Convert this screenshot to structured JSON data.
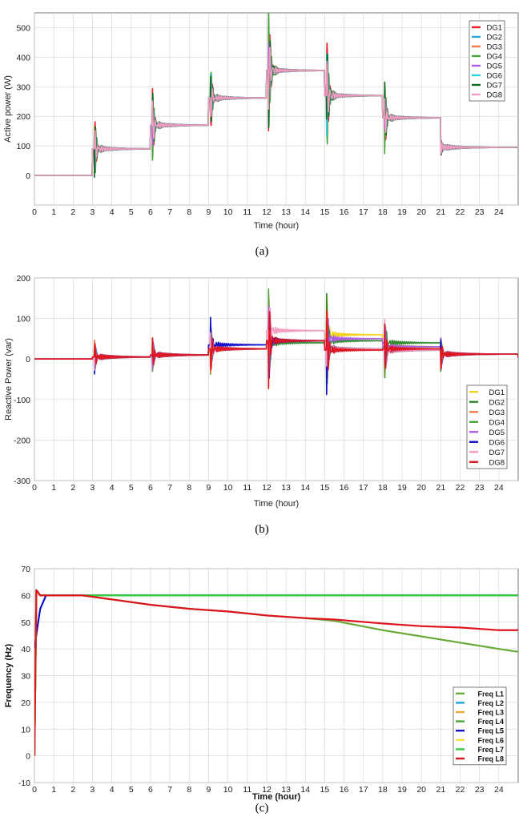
{
  "chart_data": [
    {
      "id": "a",
      "type": "line",
      "caption": "(a)",
      "xlabel": "Time (hour)",
      "ylabel": "Active power (W)",
      "xlim": [
        0,
        25
      ],
      "ylim": [
        -100,
        550
      ],
      "xticks": [
        0,
        1,
        2,
        3,
        4,
        5,
        6,
        7,
        8,
        9,
        10,
        11,
        12,
        13,
        14,
        15,
        16,
        17,
        18,
        19,
        20,
        21,
        22,
        23,
        24
      ],
      "yticks": [
        -100,
        0,
        100,
        200,
        300,
        400,
        500
      ],
      "ytick_labels": [
        "",
        "0",
        "100",
        "200",
        "300",
        "400",
        "500"
      ],
      "grid": true,
      "legend_position": "top-right",
      "series_colors": {
        "DG1": "#e8202a",
        "DG2": "#1fa3d8",
        "DG3": "#f07a4a",
        "DG4": "#4aa33a",
        "DG5": "#b05ce0",
        "DG6": "#28d4e0",
        "DG7": "#0f6b1e",
        "DG8": "#f29ac0"
      },
      "series": [
        {
          "name": "DG1",
          "t": [
            0,
            3,
            6,
            9,
            12,
            15,
            18,
            21,
            25
          ],
          "v": [
            0,
            90,
            170,
            262,
            355,
            270,
            195,
            95,
            95
          ]
        },
        {
          "name": "DG2",
          "t": [
            0,
            3,
            6,
            9,
            12,
            15,
            18,
            21,
            25
          ],
          "v": [
            0,
            90,
            170,
            262,
            355,
            270,
            195,
            95,
            95
          ]
        },
        {
          "name": "DG3",
          "t": [
            0,
            3,
            6,
            9,
            12,
            15,
            18,
            21,
            25
          ],
          "v": [
            0,
            90,
            170,
            262,
            355,
            270,
            195,
            95,
            95
          ]
        },
        {
          "name": "DG4",
          "t": [
            0,
            3,
            6,
            9,
            12,
            15,
            18,
            21,
            25
          ],
          "v": [
            0,
            90,
            170,
            262,
            355,
            270,
            195,
            95,
            95
          ]
        },
        {
          "name": "DG5",
          "t": [
            0,
            3,
            6,
            9,
            12,
            15,
            18,
            21,
            25
          ],
          "v": [
            0,
            90,
            170,
            262,
            355,
            270,
            195,
            95,
            95
          ]
        },
        {
          "name": "DG6",
          "t": [
            0,
            3,
            6,
            9,
            12,
            15,
            18,
            21,
            25
          ],
          "v": [
            0,
            90,
            170,
            262,
            355,
            270,
            195,
            95,
            95
          ]
        },
        {
          "name": "DG7",
          "t": [
            0,
            3,
            6,
            9,
            12,
            15,
            18,
            21,
            25
          ],
          "v": [
            0,
            90,
            170,
            262,
            355,
            270,
            195,
            95,
            95
          ]
        },
        {
          "name": "DG8",
          "t": [
            0,
            3,
            6,
            9,
            12,
            15,
            18,
            21,
            25
          ],
          "v": [
            0,
            90,
            170,
            262,
            355,
            270,
            195,
            95,
            95
          ]
        }
      ]
    },
    {
      "id": "b",
      "type": "line",
      "caption": "(b)",
      "xlabel": "Time (hour)",
      "ylabel": "Reactive Power (var)",
      "xlim": [
        0,
        25
      ],
      "ylim": [
        -300,
        200
      ],
      "xticks": [
        0,
        1,
        2,
        3,
        4,
        5,
        6,
        7,
        8,
        9,
        10,
        11,
        12,
        13,
        14,
        15,
        16,
        17,
        18,
        19,
        20,
        21,
        22,
        23,
        24
      ],
      "yticks": [
        -300,
        -200,
        -100,
        0,
        100,
        200
      ],
      "grid": true,
      "legend_position": "bottom-right",
      "series_colors": {
        "DG1": "#f2d21a",
        "DG2": "#2e8a2e",
        "DG3": "#f07a4a",
        "DG4": "#4aa33a",
        "DG5": "#b05ce0",
        "DG6": "#1010c8",
        "DG7": "#f29ac0",
        "DG8": "#e0141e"
      },
      "series": [
        {
          "name": "DG1",
          "t": [
            0,
            3,
            6,
            9,
            12,
            15,
            18,
            21,
            25
          ],
          "v": [
            0,
            5,
            10,
            25,
            45,
            60,
            30,
            12,
            3
          ]
        },
        {
          "name": "DG2",
          "t": [
            0,
            3,
            6,
            9,
            12,
            15,
            18,
            21,
            25
          ],
          "v": [
            0,
            5,
            10,
            25,
            40,
            45,
            40,
            12,
            3
          ]
        },
        {
          "name": "DG3",
          "t": [
            0,
            3,
            6,
            9,
            12,
            15,
            18,
            21,
            25
          ],
          "v": [
            0,
            5,
            10,
            25,
            45,
            25,
            22,
            12,
            3
          ]
        },
        {
          "name": "DG4",
          "t": [
            0,
            3,
            6,
            9,
            12,
            15,
            18,
            21,
            25
          ],
          "v": [
            0,
            5,
            10,
            25,
            45,
            25,
            30,
            12,
            3
          ]
        },
        {
          "name": "DG5",
          "t": [
            0,
            3,
            6,
            9,
            12,
            15,
            18,
            21,
            25
          ],
          "v": [
            0,
            5,
            10,
            25,
            45,
            50,
            30,
            12,
            3
          ]
        },
        {
          "name": "DG6",
          "t": [
            0,
            3,
            6,
            9,
            12,
            15,
            18,
            21,
            25
          ],
          "v": [
            0,
            5,
            10,
            35,
            45,
            25,
            22,
            12,
            3
          ]
        },
        {
          "name": "DG7",
          "t": [
            0,
            3,
            6,
            9,
            12,
            15,
            18,
            21,
            25
          ],
          "v": [
            0,
            5,
            10,
            25,
            70,
            25,
            22,
            12,
            3
          ]
        },
        {
          "name": "DG8",
          "t": [
            0,
            3,
            6,
            9,
            12,
            15,
            18,
            21,
            25
          ],
          "v": [
            0,
            5,
            10,
            25,
            45,
            22,
            25,
            12,
            3
          ]
        }
      ]
    },
    {
      "id": "c",
      "type": "line",
      "caption": "(c)",
      "xlabel": "Time (hour)",
      "ylabel": "Frequency (Hz)",
      "xlim": [
        0,
        25
      ],
      "ylim": [
        -10,
        70
      ],
      "xticks": [
        0,
        1,
        2,
        3,
        4,
        5,
        6,
        7,
        8,
        9,
        10,
        11,
        12,
        13,
        14,
        15,
        16,
        17,
        18,
        19,
        20,
        21,
        22,
        23,
        24
      ],
      "yticks": [
        -10,
        0,
        10,
        20,
        30,
        40,
        50,
        60,
        70
      ],
      "grid": true,
      "legend_position": "bottom-right",
      "series_colors": {
        "Freq L1": "#6aaa3a",
        "Freq L2": "#1fa3d8",
        "Freq L3": "#f0a830",
        "Freq L4": "#4aa33a",
        "Freq L5": "#1010c8",
        "Freq L6": "#f2e040",
        "Freq L7": "#2ecc40",
        "Freq L8": "#e0141e"
      },
      "series": [
        {
          "name": "Freq L1",
          "t": [
            0,
            0.1,
            0.3,
            2.5,
            4,
            6,
            8,
            10,
            12,
            14,
            15.5,
            18,
            21,
            24,
            24.9
          ],
          "v": [
            0,
            62,
            60,
            60,
            58.5,
            56.5,
            55,
            54,
            52.5,
            51.5,
            50.5,
            47,
            43.5,
            40,
            39
          ]
        },
        {
          "name": "Freq L2",
          "t": [
            0,
            0.1,
            0.3,
            25
          ],
          "v": [
            0,
            62,
            60,
            60
          ]
        },
        {
          "name": "Freq L3",
          "t": [
            0,
            0.1,
            0.3,
            25
          ],
          "v": [
            0,
            62,
            60,
            60
          ]
        },
        {
          "name": "Freq L4",
          "t": [
            0,
            0.1,
            0.3,
            25
          ],
          "v": [
            0,
            62,
            60,
            60
          ]
        },
        {
          "name": "Freq L5",
          "t": [
            0,
            0.15,
            0.3,
            0.6,
            25
          ],
          "v": [
            40,
            48,
            55,
            60,
            60
          ]
        },
        {
          "name": "Freq L6",
          "t": [
            0,
            0.1,
            0.3,
            25
          ],
          "v": [
            0,
            62,
            60,
            60
          ]
        },
        {
          "name": "Freq L7",
          "t": [
            0,
            0.1,
            0.3,
            25
          ],
          "v": [
            0,
            62,
            60,
            60
          ]
        },
        {
          "name": "Freq L8",
          "t": [
            0,
            0.1,
            0.3,
            2.5,
            4,
            6,
            8,
            10,
            12,
            14,
            15.5,
            18,
            20,
            22,
            24,
            24.9
          ],
          "v": [
            0,
            62,
            60,
            60,
            58.5,
            56.5,
            55,
            54,
            52.5,
            51.5,
            51,
            49.5,
            48.5,
            48,
            47,
            47
          ]
        }
      ]
    }
  ]
}
